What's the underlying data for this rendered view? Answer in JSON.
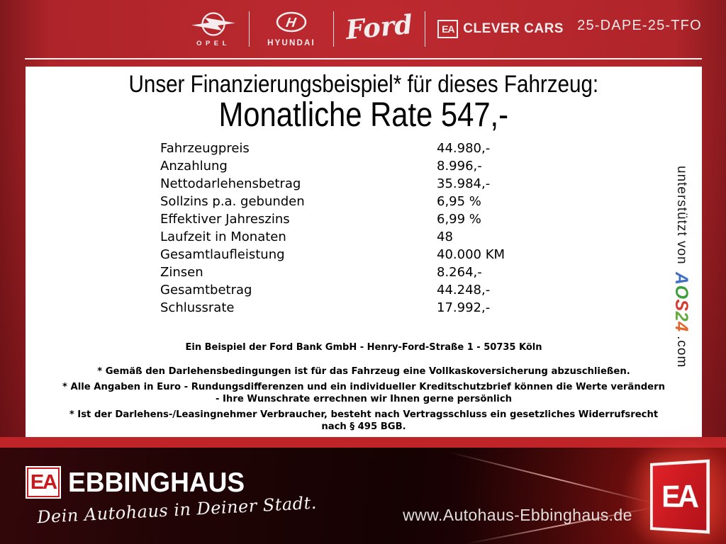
{
  "header": {
    "vehicle_code": "25-DAPE-25-TFO",
    "brands": {
      "opel": {
        "label": "OPEL"
      },
      "hyundai": {
        "label": "HYUNDAI",
        "symbol": "H"
      },
      "ford": {
        "label": "Ford"
      },
      "clever": {
        "initials": "EA",
        "label": "CLEVER CARS"
      }
    }
  },
  "finance": {
    "title_line1": "Unser Finanzierungsbeispiel* für dieses Fahrzeug:",
    "title_line2": "Monatliche Rate 547,-",
    "rows": [
      {
        "label": "Fahrzeugpreis",
        "value": "44.980,-"
      },
      {
        "label": "Anzahlung",
        "value": "8.996,-"
      },
      {
        "label": "Nettodarlehensbetrag",
        "value": "35.984,-"
      },
      {
        "label": "Sollzins p.a. gebunden",
        "value": "6,95 %"
      },
      {
        "label": "Effektiver Jahreszins",
        "value": "6,99 %"
      },
      {
        "label": "Laufzeit in Monaten",
        "value": "48"
      },
      {
        "label": "Gesamtlaufleistung",
        "value": "40.000 KM"
      },
      {
        "label": "Zinsen",
        "value": "8.264,-"
      },
      {
        "label": "Gesamtbetrag",
        "value": "44.248,-"
      },
      {
        "label": "Schlussrate",
        "value": "17.992,-"
      }
    ],
    "bank_line": "Ein Beispiel der Ford Bank GmbH - Henry-Ford-Straße 1 - 50735 Köln",
    "disclaimer_lines": [
      "* Gemäß den Darlehensbedingungen ist für das Fahrzeug eine Vollkaskoversicherung abzuschließen.",
      "* Alle Angaben in Euro - Rundungsdifferenzen und ein individueller Kreditschutzbrief können die Werte verändern",
      "- Ihre Wunschrate errechnen wir Ihnen gerne persönlich",
      "* Ist der Darlehens-/Leasingnehmer Verbraucher, besteht nach Vertragsschluss ein gesetzliches Widerrufsrecht",
      "nach § 495 BGB."
    ]
  },
  "support": {
    "prefix": "unterstützt von",
    "brand_letters": [
      {
        "ch": "A",
        "color": "#3f6fc1"
      },
      {
        "ch": "O",
        "color": "#3f9e3a"
      },
      {
        "ch": "S",
        "color": "#d8392f"
      },
      {
        "ch": "2",
        "color": "#62aa3a"
      },
      {
        "ch": "4",
        "color": "#e2662b"
      }
    ],
    "suffix": ".com"
  },
  "footer": {
    "dealer_initials": "EA",
    "dealer_name": "EBBINGHAUS",
    "tagline": "Dein Autohaus in Deiner Stadt.",
    "website": "www.Autohaus-Ebbinghaus.de",
    "badge_initials": "EA"
  },
  "colors": {
    "background_red": "#a92127",
    "band_red": "#bf2429",
    "panel_white": "#ffffff",
    "logo_red": "#c8191f",
    "footer_dark": "#150203"
  }
}
